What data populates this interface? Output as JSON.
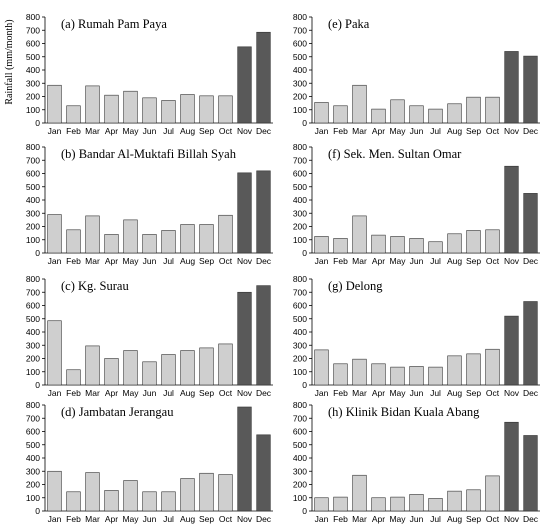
{
  "ylabel": "Rainfall (mm/month)",
  "colors": {
    "light_bar": "#cfcfcf",
    "dark_bar": "#595959",
    "axis": "#000000",
    "bar_stroke": "#333333"
  },
  "chart_data": [
    {
      "type": "bar",
      "title": "(a) Rumah Pam Paya",
      "categories": [
        "Jan",
        "Feb",
        "Mar",
        "Apr",
        "May",
        "Jun",
        "Jul",
        "Aug",
        "Sep",
        "Oct",
        "Nov",
        "Dec"
      ],
      "values": [
        285,
        130,
        280,
        210,
        240,
        190,
        170,
        215,
        205,
        205,
        575,
        685
      ],
      "ylim": [
        0,
        800
      ],
      "yticks": [
        0,
        100,
        200,
        300,
        400,
        500,
        600,
        700,
        800
      ],
      "highlight_from_index": 10
    },
    {
      "type": "bar",
      "title": "(e) Paka",
      "categories": [
        "Jan",
        "Feb",
        "Mar",
        "Apr",
        "May",
        "Jun",
        "Jul",
        "Aug",
        "Sep",
        "Oct",
        "Nov",
        "Dec"
      ],
      "values": [
        155,
        130,
        285,
        105,
        175,
        130,
        105,
        145,
        195,
        195,
        540,
        505
      ],
      "ylim": [
        0,
        800
      ],
      "yticks": [
        0,
        100,
        200,
        300,
        400,
        500,
        600,
        700,
        800
      ],
      "highlight_from_index": 10
    },
    {
      "type": "bar",
      "title": "(b) Bandar Al-Muktafi Billah Syah",
      "categories": [
        "Jan",
        "Feb",
        "Mar",
        "Apr",
        "May",
        "Jun",
        "Jul",
        "Aug",
        "Sep",
        "Oct",
        "Nov",
        "Dec"
      ],
      "values": [
        290,
        175,
        280,
        140,
        250,
        140,
        170,
        215,
        215,
        285,
        605,
        620
      ],
      "ylim": [
        0,
        800
      ],
      "yticks": [
        0,
        100,
        200,
        300,
        400,
        500,
        600,
        700,
        800
      ],
      "highlight_from_index": 10
    },
    {
      "type": "bar",
      "title": "(f) Sek. Men. Sultan Omar",
      "categories": [
        "Jan",
        "Feb",
        "Mar",
        "Apr",
        "May",
        "Jun",
        "Jul",
        "Aug",
        "Sep",
        "Oct",
        "Nov",
        "Dec"
      ],
      "values": [
        125,
        110,
        280,
        135,
        125,
        110,
        85,
        145,
        170,
        175,
        655,
        450
      ],
      "ylim": [
        0,
        800
      ],
      "yticks": [
        0,
        100,
        200,
        300,
        400,
        500,
        600,
        700,
        800
      ],
      "highlight_from_index": 10
    },
    {
      "type": "bar",
      "title": "(c) Kg. Surau",
      "categories": [
        "Jan",
        "Feb",
        "Mar",
        "Apr",
        "May",
        "Jun",
        "Jul",
        "Aug",
        "Sep",
        "Oct",
        "Nov",
        "Dec"
      ],
      "values": [
        485,
        115,
        295,
        200,
        260,
        175,
        230,
        260,
        280,
        310,
        700,
        750
      ],
      "ylim": [
        0,
        800
      ],
      "yticks": [
        0,
        100,
        200,
        300,
        400,
        500,
        600,
        700,
        800
      ],
      "highlight_from_index": 10
    },
    {
      "type": "bar",
      "title": "(g) Delong",
      "categories": [
        "Jan",
        "Feb",
        "Mar",
        "Apr",
        "May",
        "Jun",
        "Jul",
        "Aug",
        "Sep",
        "Oct",
        "Nov",
        "Dec"
      ],
      "values": [
        265,
        160,
        195,
        160,
        135,
        140,
        135,
        220,
        235,
        270,
        520,
        630
      ],
      "ylim": [
        0,
        800
      ],
      "yticks": [
        0,
        100,
        200,
        300,
        400,
        500,
        600,
        700,
        800
      ],
      "highlight_from_index": 10
    },
    {
      "type": "bar",
      "title": "(d) Jambatan Jerangau",
      "categories": [
        "Jan",
        "Feb",
        "Mar",
        "Apr",
        "May",
        "Jun",
        "Jul",
        "Aug",
        "Sep",
        "Oct",
        "Nov",
        "Dec"
      ],
      "values": [
        300,
        145,
        290,
        155,
        230,
        145,
        145,
        245,
        285,
        275,
        785,
        575
      ],
      "ylim": [
        0,
        800
      ],
      "yticks": [
        0,
        100,
        200,
        300,
        400,
        500,
        600,
        700,
        800
      ],
      "highlight_from_index": 10
    },
    {
      "type": "bar",
      "title": "(h) Klinik Bidan Kuala Abang",
      "categories": [
        "Jan",
        "Feb",
        "Mar",
        "Apr",
        "May",
        "Jun",
        "Jul",
        "Aug",
        "Sep",
        "Oct",
        "Nov",
        "Dec"
      ],
      "values": [
        100,
        105,
        270,
        100,
        105,
        125,
        95,
        150,
        160,
        265,
        670,
        570
      ],
      "ylim": [
        0,
        800
      ],
      "yticks": [
        0,
        100,
        200,
        300,
        400,
        500,
        600,
        700,
        800
      ],
      "highlight_from_index": 10
    }
  ]
}
